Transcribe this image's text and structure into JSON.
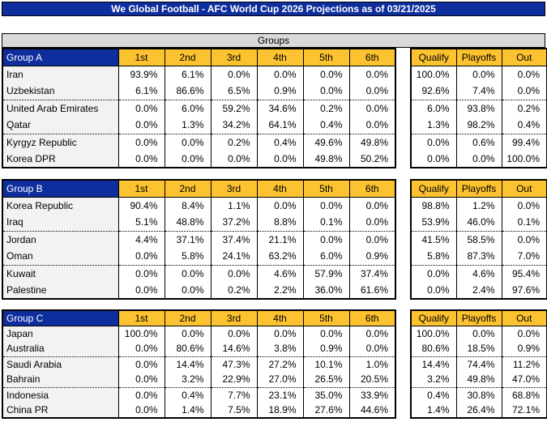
{
  "title": "We Global Football - AFC World Cup 2026 Projections as of 03/21/2025",
  "section_header": "Groups",
  "position_headers": [
    "1st",
    "2nd",
    "3rd",
    "4th",
    "5th",
    "6th"
  ],
  "outcome_headers": [
    "Qualify",
    "Playoffs",
    "Out"
  ],
  "colors": {
    "header_blue": "#0E2E9E",
    "header_gold": "#FCC22F",
    "section_gray": "#D9D9D9",
    "team_column_bg": "#F2F2F2"
  },
  "groups": [
    {
      "name": "Group A",
      "teams": [
        {
          "name": "Iran",
          "positions": [
            "93.9%",
            "6.1%",
            "0.0%",
            "0.0%",
            "0.0%",
            "0.0%"
          ],
          "outcomes": [
            "100.0%",
            "0.0%",
            "0.0%"
          ]
        },
        {
          "name": "Uzbekistan",
          "positions": [
            "6.1%",
            "86.6%",
            "6.5%",
            "0.9%",
            "0.0%",
            "0.0%"
          ],
          "outcomes": [
            "92.6%",
            "7.4%",
            "0.0%"
          ]
        },
        {
          "name": "United Arab Emirates",
          "positions": [
            "0.0%",
            "6.0%",
            "59.2%",
            "34.6%",
            "0.2%",
            "0.0%"
          ],
          "outcomes": [
            "6.0%",
            "93.8%",
            "0.2%"
          ]
        },
        {
          "name": "Qatar",
          "positions": [
            "0.0%",
            "1.3%",
            "34.2%",
            "64.1%",
            "0.4%",
            "0.0%"
          ],
          "outcomes": [
            "1.3%",
            "98.2%",
            "0.4%"
          ]
        },
        {
          "name": "Kyrgyz Republic",
          "positions": [
            "0.0%",
            "0.0%",
            "0.2%",
            "0.4%",
            "49.6%",
            "49.8%"
          ],
          "outcomes": [
            "0.0%",
            "0.6%",
            "99.4%"
          ]
        },
        {
          "name": "Korea DPR",
          "positions": [
            "0.0%",
            "0.0%",
            "0.0%",
            "0.0%",
            "49.8%",
            "50.2%"
          ],
          "outcomes": [
            "0.0%",
            "0.0%",
            "100.0%"
          ]
        }
      ]
    },
    {
      "name": "Group B",
      "teams": [
        {
          "name": "Korea Republic",
          "positions": [
            "90.4%",
            "8.4%",
            "1.1%",
            "0.0%",
            "0.0%",
            "0.0%"
          ],
          "outcomes": [
            "98.8%",
            "1.2%",
            "0.0%"
          ]
        },
        {
          "name": "Iraq",
          "positions": [
            "5.1%",
            "48.8%",
            "37.2%",
            "8.8%",
            "0.1%",
            "0.0%"
          ],
          "outcomes": [
            "53.9%",
            "46.0%",
            "0.1%"
          ]
        },
        {
          "name": "Jordan",
          "positions": [
            "4.4%",
            "37.1%",
            "37.4%",
            "21.1%",
            "0.0%",
            "0.0%"
          ],
          "outcomes": [
            "41.5%",
            "58.5%",
            "0.0%"
          ]
        },
        {
          "name": "Oman",
          "positions": [
            "0.0%",
            "5.8%",
            "24.1%",
            "63.2%",
            "6.0%",
            "0.9%"
          ],
          "outcomes": [
            "5.8%",
            "87.3%",
            "7.0%"
          ]
        },
        {
          "name": "Kuwait",
          "positions": [
            "0.0%",
            "0.0%",
            "0.0%",
            "4.6%",
            "57.9%",
            "37.4%"
          ],
          "outcomes": [
            "0.0%",
            "4.6%",
            "95.4%"
          ]
        },
        {
          "name": "Palestine",
          "positions": [
            "0.0%",
            "0.0%",
            "0.2%",
            "2.2%",
            "36.0%",
            "61.6%"
          ],
          "outcomes": [
            "0.0%",
            "2.4%",
            "97.6%"
          ]
        }
      ]
    },
    {
      "name": "Group C",
      "teams": [
        {
          "name": "Japan",
          "positions": [
            "100.0%",
            "0.0%",
            "0.0%",
            "0.0%",
            "0.0%",
            "0.0%"
          ],
          "outcomes": [
            "100.0%",
            "0.0%",
            "0.0%"
          ]
        },
        {
          "name": "Australia",
          "positions": [
            "0.0%",
            "80.6%",
            "14.6%",
            "3.8%",
            "0.9%",
            "0.0%"
          ],
          "outcomes": [
            "80.6%",
            "18.5%",
            "0.9%"
          ]
        },
        {
          "name": "Saudi Arabia",
          "positions": [
            "0.0%",
            "14.4%",
            "47.3%",
            "27.2%",
            "10.1%",
            "1.0%"
          ],
          "outcomes": [
            "14.4%",
            "74.4%",
            "11.2%"
          ]
        },
        {
          "name": "Bahrain",
          "positions": [
            "0.0%",
            "3.2%",
            "22.9%",
            "27.0%",
            "26.5%",
            "20.5%"
          ],
          "outcomes": [
            "3.2%",
            "49.8%",
            "47.0%"
          ]
        },
        {
          "name": "Indonesia",
          "positions": [
            "0.0%",
            "0.4%",
            "7.7%",
            "23.1%",
            "35.0%",
            "33.9%"
          ],
          "outcomes": [
            "0.4%",
            "30.8%",
            "68.8%"
          ]
        },
        {
          "name": "China PR",
          "positions": [
            "0.0%",
            "1.4%",
            "7.5%",
            "18.9%",
            "27.6%",
            "44.6%"
          ],
          "outcomes": [
            "1.4%",
            "26.4%",
            "72.1%"
          ]
        }
      ]
    }
  ]
}
